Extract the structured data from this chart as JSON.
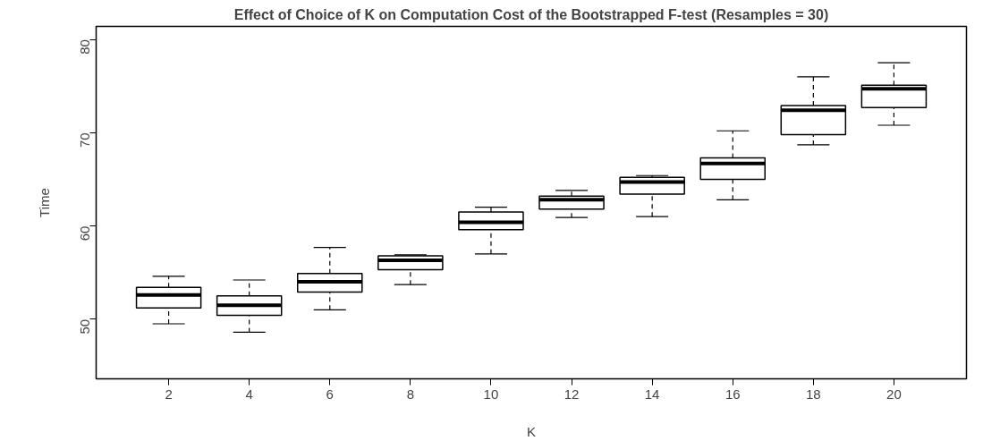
{
  "chart_data": {
    "type": "box",
    "title": "Effect of Choice of K on Computation Cost of the Bootstrapped F-test (Resamples = 30)",
    "xlabel": "K",
    "ylabel": "Time",
    "categories": [
      "2",
      "4",
      "6",
      "8",
      "10",
      "12",
      "14",
      "16",
      "18",
      "20"
    ],
    "boxes": [
      {
        "low": 49.5,
        "q1": 51.2,
        "median": 52.6,
        "q3": 53.4,
        "high": 54.6
      },
      {
        "low": 48.6,
        "q1": 50.4,
        "median": 51.5,
        "q3": 52.5,
        "high": 54.2
      },
      {
        "low": 51.0,
        "q1": 52.9,
        "median": 54.0,
        "q3": 54.9,
        "high": 57.7
      },
      {
        "low": 53.7,
        "q1": 55.3,
        "median": 56.3,
        "q3": 56.8,
        "high": 56.9
      },
      {
        "low": 57.0,
        "q1": 59.6,
        "median": 60.4,
        "q3": 61.5,
        "high": 62.0
      },
      {
        "low": 60.9,
        "q1": 61.8,
        "median": 62.8,
        "q3": 63.2,
        "high": 63.8
      },
      {
        "low": 61.0,
        "q1": 63.4,
        "median": 64.7,
        "q3": 65.2,
        "high": 65.4
      },
      {
        "low": 62.8,
        "q1": 65.0,
        "median": 66.7,
        "q3": 67.3,
        "high": 70.2
      },
      {
        "low": 68.7,
        "q1": 69.8,
        "median": 72.4,
        "q3": 72.9,
        "high": 76.0
      },
      {
        "low": 70.8,
        "q1": 72.7,
        "median": 74.7,
        "q3": 75.1,
        "high": 77.5
      }
    ],
    "ylim": [
      43.6,
      81.4
    ],
    "yticks": [
      50,
      60,
      70,
      80
    ],
    "grid": false
  }
}
